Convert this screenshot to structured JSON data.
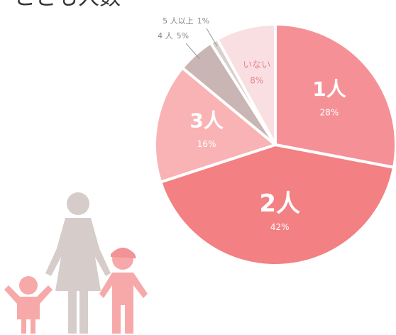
{
  "chart_data": {
    "type": "pie",
    "title": "こども人数",
    "categories": [
      "1人",
      "2人",
      "3人",
      "4 人",
      "5 人以上",
      "いない"
    ],
    "values": [
      28,
      42,
      16,
      5,
      1,
      8
    ],
    "value_labels": [
      "28%",
      "42%",
      "16%",
      "5%",
      "1%",
      "8%"
    ],
    "colors": [
      "#f59097",
      "#f38083",
      "#f9b3b5",
      "#c9b6b4",
      "#d8d0cf",
      "#fadfe2"
    ]
  }
}
